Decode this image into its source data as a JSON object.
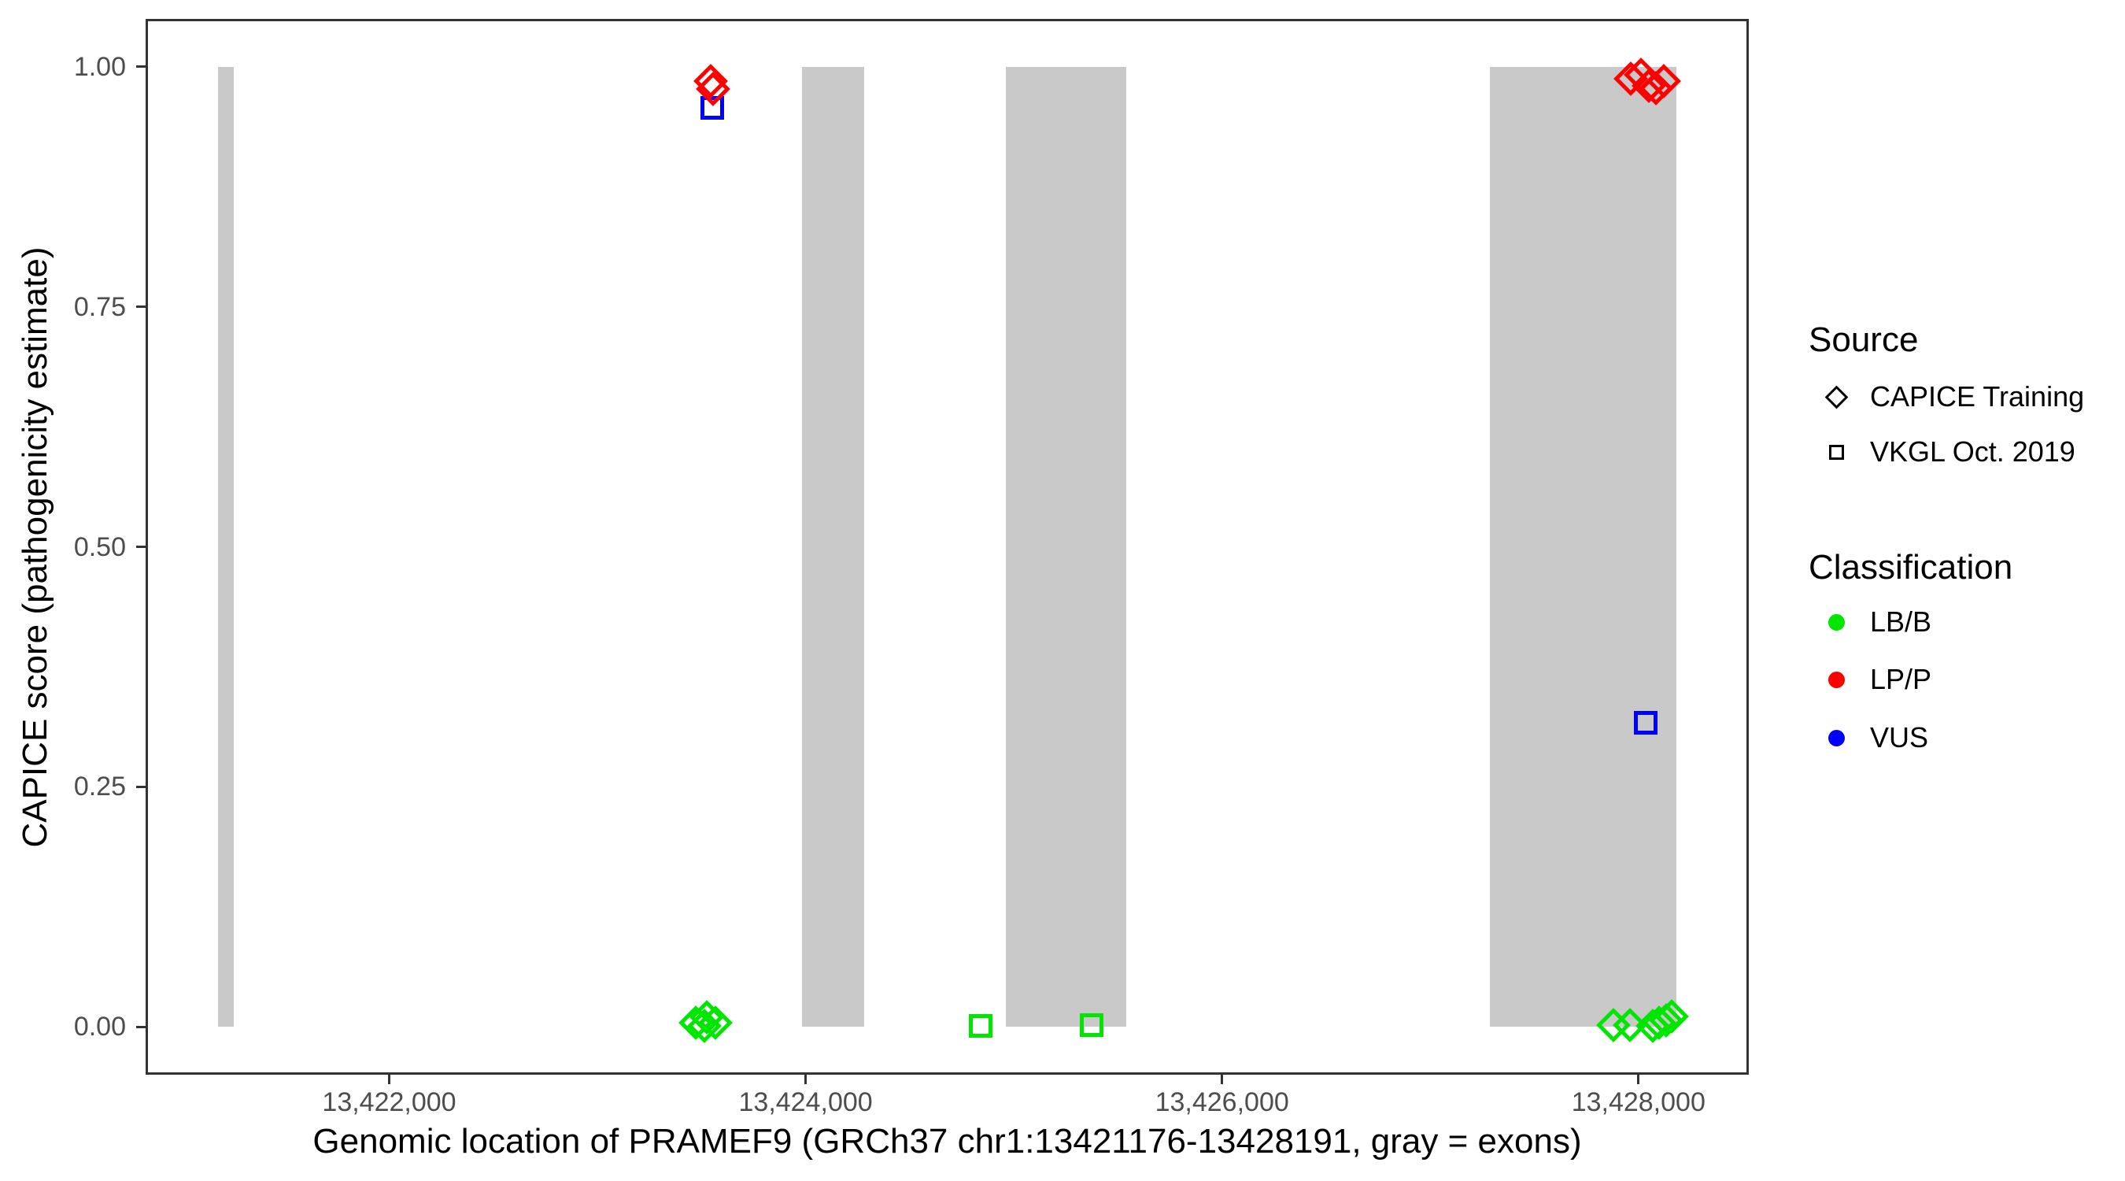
{
  "chart_data": {
    "type": "scatter",
    "title": "",
    "xlabel": "Genomic location of PRAMEF9 (GRCh37 chr1:13421176-13428191, gray = exons)",
    "ylabel": "CAPICE score (pathogenicity estimate)",
    "xlim": [
      13420830,
      13428530
    ],
    "ylim": [
      -0.05,
      1.05
    ],
    "grid": false,
    "x_ticks": [
      {
        "value": 13422000,
        "label": "13,422,000"
      },
      {
        "value": 13424000,
        "label": "13,424,000"
      },
      {
        "value": 13426000,
        "label": "13,426,000"
      },
      {
        "value": 13428000,
        "label": "13,428,000"
      }
    ],
    "y_ticks": [
      {
        "value": 0.0,
        "label": "0.00"
      },
      {
        "value": 0.25,
        "label": "0.25"
      },
      {
        "value": 0.5,
        "label": "0.50"
      },
      {
        "value": 0.75,
        "label": "0.75"
      },
      {
        "value": 1.0,
        "label": "1.00"
      }
    ],
    "exon_color": "#c9c9c9",
    "exons": [
      {
        "start": 13421176,
        "end": 13421253
      },
      {
        "start": 13423981,
        "end": 13424283
      },
      {
        "start": 13424962,
        "end": 13425540
      },
      {
        "start": 13427287,
        "end": 13428181
      }
    ],
    "series": [
      {
        "name": "CAPICE Training - LP/P",
        "source": "CAPICE Training",
        "classification": "LP/P",
        "shape": "diamond",
        "color": "#ff0000",
        "points": [
          {
            "x": 13423545,
            "y": 0.985
          },
          {
            "x": 13423556,
            "y": 0.977
          },
          {
            "x": 13427962,
            "y": 0.988
          },
          {
            "x": 13428012,
            "y": 0.992
          },
          {
            "x": 13428050,
            "y": 0.98
          },
          {
            "x": 13428085,
            "y": 0.978
          },
          {
            "x": 13428122,
            "y": 0.985
          }
        ]
      },
      {
        "name": "CAPICE Training - LB/B",
        "source": "CAPICE Training",
        "classification": "LB/B",
        "shape": "diamond",
        "color": "#00e600",
        "points": [
          {
            "x": 13423472,
            "y": 0.004
          },
          {
            "x": 13423513,
            "y": 0.001
          },
          {
            "x": 13423524,
            "y": 0.01
          },
          {
            "x": 13423568,
            "y": 0.004
          },
          {
            "x": 13427879,
            "y": 0.002
          },
          {
            "x": 13427959,
            "y": 0.002
          },
          {
            "x": 13428068,
            "y": 0.001
          },
          {
            "x": 13428100,
            "y": 0.004
          },
          {
            "x": 13428132,
            "y": 0.007
          },
          {
            "x": 13428158,
            "y": 0.011
          }
        ]
      },
      {
        "name": "VKGL Oct. 2019 - VUS",
        "source": "VKGL Oct. 2019",
        "classification": "VUS",
        "shape": "square",
        "color": "#0000ff",
        "points": [
          {
            "x": 13423553,
            "y": 0.957
          },
          {
            "x": 13428034,
            "y": 0.317
          }
        ]
      },
      {
        "name": "VKGL Oct. 2019 - LB/B",
        "source": "VKGL Oct. 2019",
        "classification": "LB/B",
        "shape": "square",
        "color": "#00e600",
        "points": [
          {
            "x": 13424841,
            "y": 0.001
          },
          {
            "x": 13425374,
            "y": 0.002
          }
        ]
      }
    ],
    "legend": {
      "position": "right",
      "source_title": "Source",
      "source_items": [
        {
          "label": "CAPICE Training",
          "shape": "diamond"
        },
        {
          "label": "VKGL Oct. 2019",
          "shape": "square"
        }
      ],
      "classification_title": "Classification",
      "classification_items": [
        {
          "label": "LB/B",
          "color": "#00e600"
        },
        {
          "label": "LP/P",
          "color": "#ff0000"
        },
        {
          "label": "VUS",
          "color": "#0000ff"
        }
      ]
    }
  }
}
